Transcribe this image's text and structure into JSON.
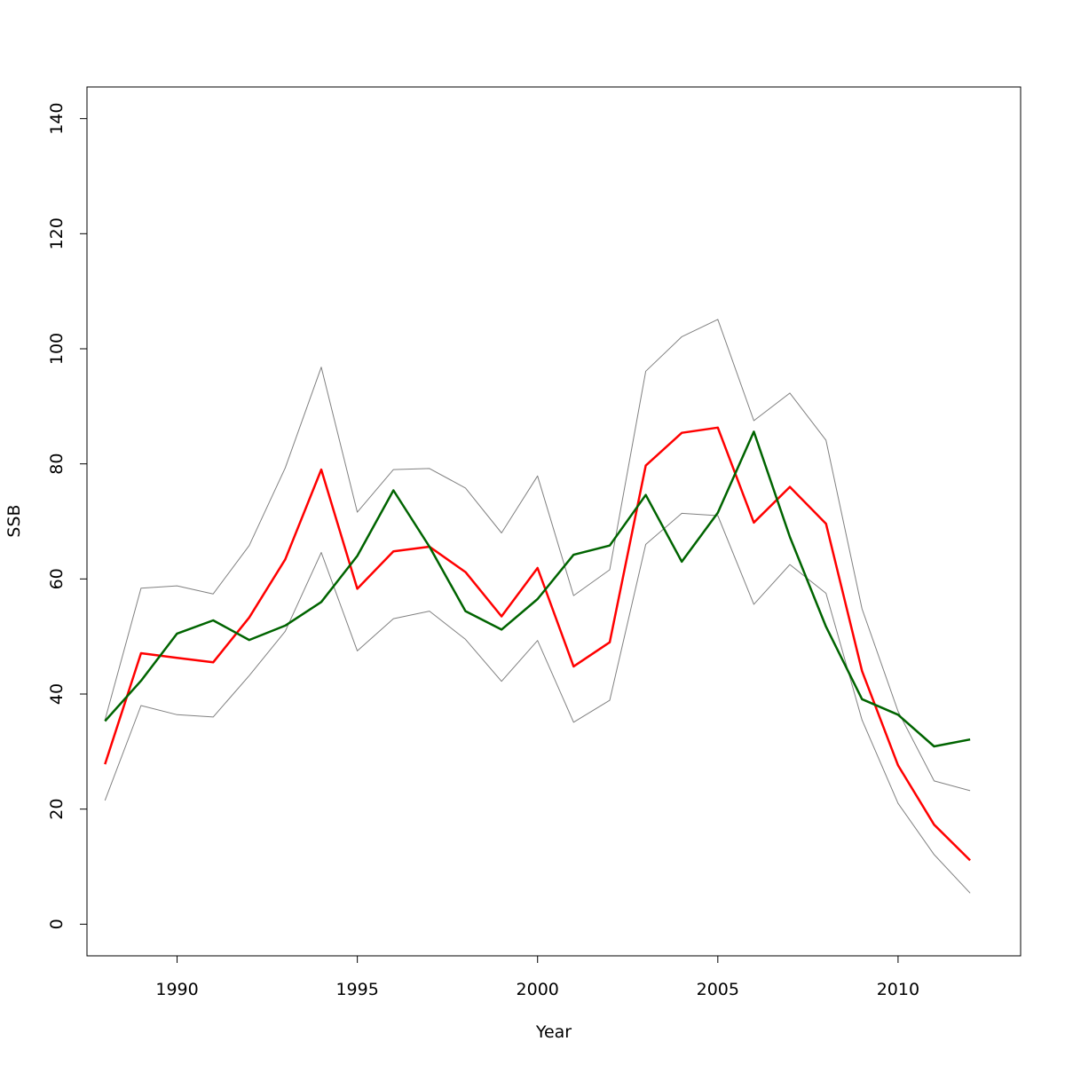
{
  "chart_data": {
    "type": "line",
    "title": "",
    "xlabel": "Year",
    "ylabel": "SSB",
    "xlim": [
      1987.5,
      2013.4
    ],
    "ylim": [
      -5.5,
      145.5
    ],
    "xticks": [
      1990,
      1995,
      2000,
      2005,
      2010
    ],
    "yticks": [
      0,
      20,
      40,
      60,
      80,
      100,
      120,
      140
    ],
    "grid": false,
    "legend": "none",
    "x": [
      1988,
      1989,
      1990,
      1991,
      1992,
      1993,
      1994,
      1995,
      1996,
      1997,
      1998,
      1999,
      2000,
      2001,
      2002,
      2003,
      2004,
      2005,
      2006,
      2007,
      2008,
      2009,
      2010,
      2011,
      2012
    ],
    "series": [
      {
        "color": "#808080",
        "width": 1,
        "values": [
          35.5,
          58.4,
          58.8,
          57.4,
          65.8,
          79.3,
          96.8,
          71.6,
          79.0,
          79.2,
          75.8,
          68.0,
          77.9,
          57.1,
          61.6,
          96.1,
          102.1,
          105.1,
          87.5,
          92.3,
          84.1,
          54.8,
          37.0,
          24.9,
          23.2
        ]
      },
      {
        "color": "#808080",
        "width": 1,
        "values": [
          21.5,
          38.0,
          36.4,
          36.0,
          43.2,
          50.9,
          64.6,
          47.5,
          53.1,
          54.4,
          49.5,
          42.2,
          49.3,
          35.1,
          38.9,
          66.0,
          71.4,
          71.0,
          55.6,
          62.5,
          57.5,
          35.5,
          21.0,
          12.1,
          5.4
        ]
      },
      {
        "color": "#ff0000",
        "width": 2.5,
        "values": [
          27.8,
          47.1,
          46.3,
          45.5,
          53.3,
          63.4,
          79.0,
          58.3,
          64.8,
          65.6,
          61.2,
          53.5,
          61.9,
          44.8,
          49.0,
          79.7,
          85.4,
          86.3,
          69.8,
          76.0,
          69.6,
          44.0,
          27.6,
          17.3,
          11.1
        ]
      },
      {
        "color": "#006400",
        "width": 2.5,
        "values": [
          35.3,
          42.3,
          50.5,
          52.8,
          49.4,
          51.9,
          56.0,
          64.0,
          75.4,
          65.6,
          54.4,
          51.2,
          56.5,
          64.2,
          65.8,
          74.6,
          63.0,
          71.5,
          85.6,
          67.3,
          51.7,
          39.1,
          36.4,
          30.9,
          32.1
        ]
      }
    ]
  }
}
